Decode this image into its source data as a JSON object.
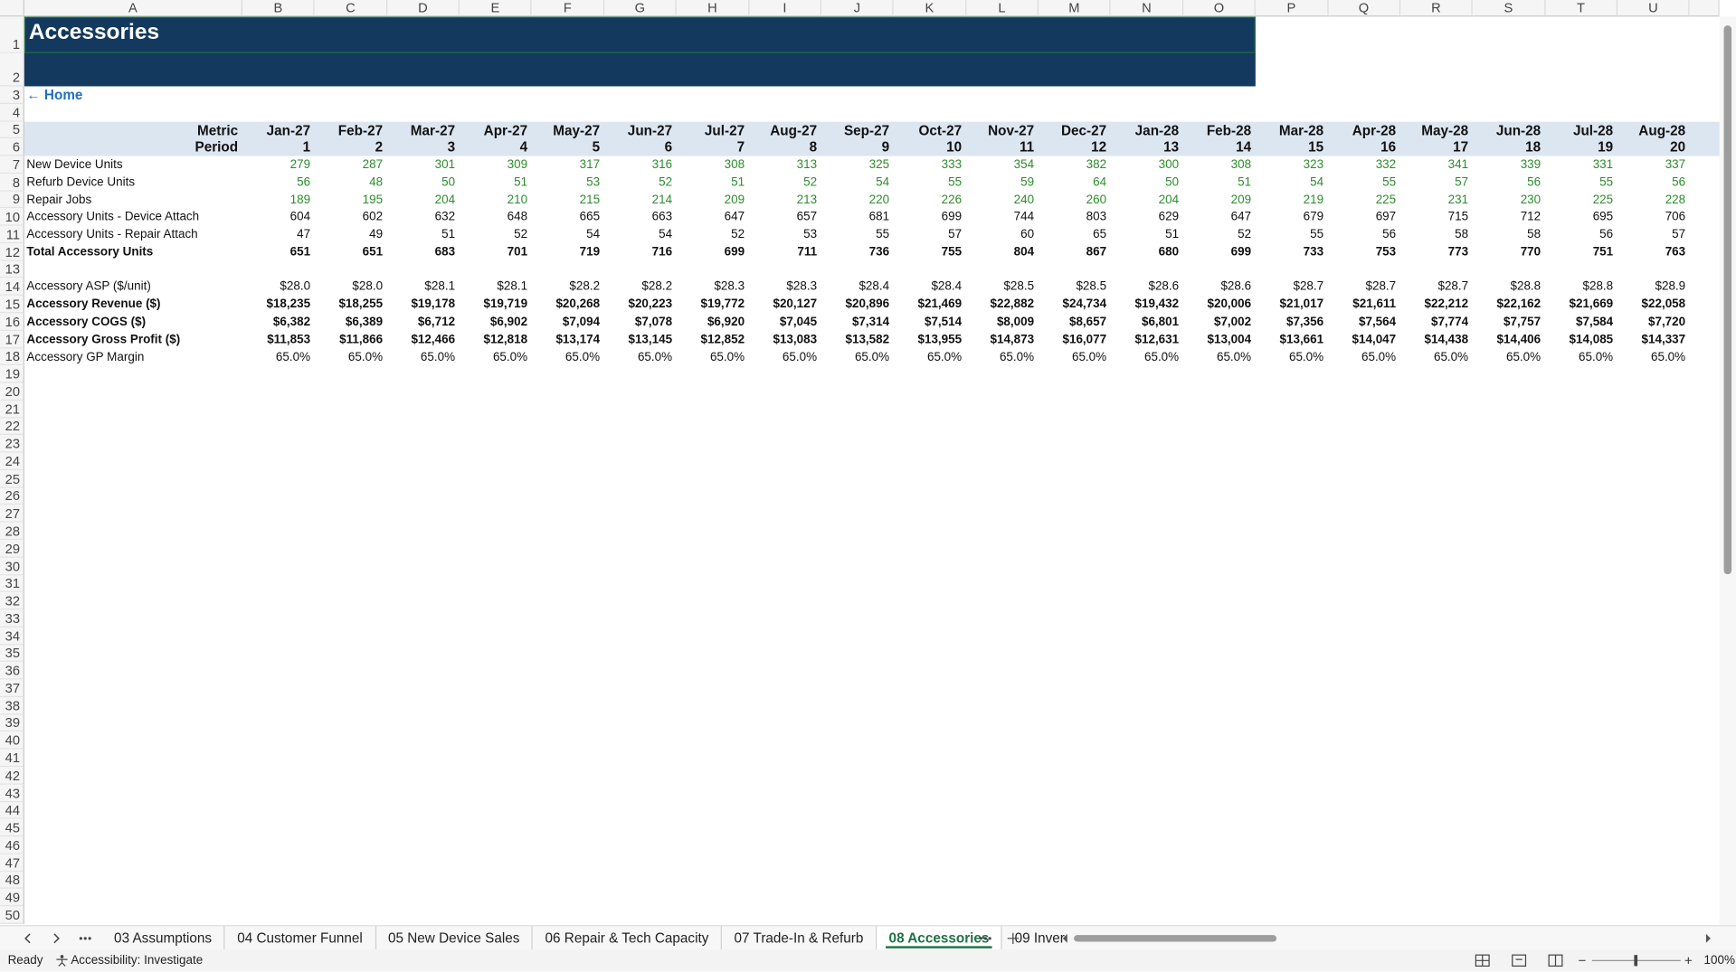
{
  "columns": [
    "A",
    "B",
    "C",
    "D",
    "E",
    "F",
    "G",
    "H",
    "I",
    "J",
    "K",
    "L",
    "M",
    "N",
    "O",
    "P",
    "Q",
    "R",
    "S",
    "T",
    "U"
  ],
  "row_numbers": [
    1,
    2,
    3,
    4,
    5,
    6,
    7,
    8,
    9,
    10,
    11,
    12,
    13,
    14,
    15,
    16,
    17,
    18,
    19,
    20,
    21,
    22,
    23,
    24,
    25,
    26,
    27,
    28,
    29,
    30,
    31,
    32,
    33,
    34,
    35,
    36,
    37,
    38,
    39,
    40,
    41,
    42,
    43,
    44,
    45,
    46,
    47,
    48,
    49,
    50
  ],
  "title": "Accessories",
  "home_link": "← Home",
  "table": {
    "header_labels": [
      "Metric",
      "Period"
    ],
    "months": [
      "Jan-27",
      "Feb-27",
      "Mar-27",
      "Apr-27",
      "May-27",
      "Jun-27",
      "Jul-27",
      "Aug-27",
      "Sep-27",
      "Oct-27",
      "Nov-27",
      "Dec-27",
      "Jan-28",
      "Feb-28",
      "Mar-28",
      "Apr-28",
      "May-28",
      "Jun-28",
      "Jul-28",
      "Aug-28"
    ],
    "periods": [
      1,
      2,
      3,
      4,
      5,
      6,
      7,
      8,
      9,
      10,
      11,
      12,
      13,
      14,
      15,
      16,
      17,
      18,
      19,
      20
    ],
    "blocks": [
      [
        {
          "label": "New Device Units",
          "style": "input",
          "values": [
            279,
            287,
            301,
            309,
            317,
            316,
            308,
            313,
            325,
            333,
            354,
            382,
            300,
            308,
            323,
            332,
            341,
            339,
            331,
            337
          ]
        },
        {
          "label": "Refurb Device Units",
          "style": "input",
          "values": [
            56,
            48,
            50,
            51,
            53,
            52,
            51,
            52,
            54,
            55,
            59,
            64,
            50,
            51,
            54,
            55,
            57,
            56,
            55,
            56
          ]
        },
        {
          "label": "Repair Jobs",
          "style": "input",
          "values": [
            189,
            195,
            204,
            210,
            215,
            214,
            209,
            213,
            220,
            226,
            240,
            260,
            204,
            209,
            219,
            225,
            231,
            230,
            225,
            228
          ]
        },
        {
          "label": "Accessory Units - Device Attach",
          "style": "normal",
          "values": [
            604,
            602,
            632,
            648,
            665,
            663,
            647,
            657,
            681,
            699,
            744,
            803,
            629,
            647,
            679,
            697,
            715,
            712,
            695,
            706
          ]
        },
        {
          "label": "Accessory Units - Repair Attach",
          "style": "normal",
          "values": [
            47,
            49,
            51,
            52,
            54,
            54,
            52,
            53,
            55,
            57,
            60,
            65,
            51,
            52,
            55,
            56,
            58,
            58,
            56,
            57
          ]
        },
        {
          "label": "Total Accessory Units",
          "style": "bold",
          "values": [
            651,
            651,
            683,
            701,
            719,
            716,
            699,
            711,
            736,
            755,
            804,
            867,
            680,
            699,
            733,
            753,
            773,
            770,
            751,
            763
          ]
        }
      ],
      [
        {
          "label": "Accessory ASP ($/unit)",
          "style": "normal",
          "values": [
            "$28.0",
            "$28.0",
            "$28.1",
            "$28.1",
            "$28.2",
            "$28.2",
            "$28.3",
            "$28.3",
            "$28.4",
            "$28.4",
            "$28.5",
            "$28.5",
            "$28.6",
            "$28.6",
            "$28.7",
            "$28.7",
            "$28.7",
            "$28.8",
            "$28.8",
            "$28.9"
          ]
        },
        {
          "label": "Accessory Revenue ($)",
          "style": "bold",
          "values": [
            "$18,235",
            "$18,255",
            "$19,178",
            "$19,719",
            "$20,268",
            "$20,223",
            "$19,772",
            "$20,127",
            "$20,896",
            "$21,469",
            "$22,882",
            "$24,734",
            "$19,432",
            "$20,006",
            "$21,017",
            "$21,611",
            "$22,212",
            "$22,162",
            "$21,669",
            "$22,058"
          ]
        },
        {
          "label": "Accessory COGS ($)",
          "style": "bold",
          "values": [
            "$6,382",
            "$6,389",
            "$6,712",
            "$6,902",
            "$7,094",
            "$7,078",
            "$6,920",
            "$7,045",
            "$7,314",
            "$7,514",
            "$8,009",
            "$8,657",
            "$6,801",
            "$7,002",
            "$7,356",
            "$7,564",
            "$7,774",
            "$7,757",
            "$7,584",
            "$7,720"
          ]
        },
        {
          "label": "Accessory Gross Profit ($)",
          "style": "bold",
          "values": [
            "$11,853",
            "$11,866",
            "$12,466",
            "$12,818",
            "$13,174",
            "$13,145",
            "$12,852",
            "$13,083",
            "$13,582",
            "$13,955",
            "$14,873",
            "$16,077",
            "$12,631",
            "$13,004",
            "$13,661",
            "$14,047",
            "$14,438",
            "$14,406",
            "$14,085",
            "$14,337"
          ]
        },
        {
          "label": "Accessory GP Margin",
          "style": "normal",
          "values": [
            "65.0%",
            "65.0%",
            "65.0%",
            "65.0%",
            "65.0%",
            "65.0%",
            "65.0%",
            "65.0%",
            "65.0%",
            "65.0%",
            "65.0%",
            "65.0%",
            "65.0%",
            "65.0%",
            "65.0%",
            "65.0%",
            "65.0%",
            "65.0%",
            "65.0%",
            "65.0%"
          ]
        }
      ]
    ]
  },
  "tabs": [
    {
      "label": "03 Assumptions",
      "active": false
    },
    {
      "label": "04 Customer Funnel",
      "active": false
    },
    {
      "label": "05 New Device Sales",
      "active": false
    },
    {
      "label": "06 Repair & Tech Capacity",
      "active": false
    },
    {
      "label": "07 Trade-In & Refurb",
      "active": false
    },
    {
      "label": "08 Accessories",
      "active": true
    },
    {
      "label": "09 Inver",
      "active": false
    }
  ],
  "status": {
    "mode": "Ready",
    "accessibility": "Accessibility: Investigate",
    "zoom": "100%"
  }
}
